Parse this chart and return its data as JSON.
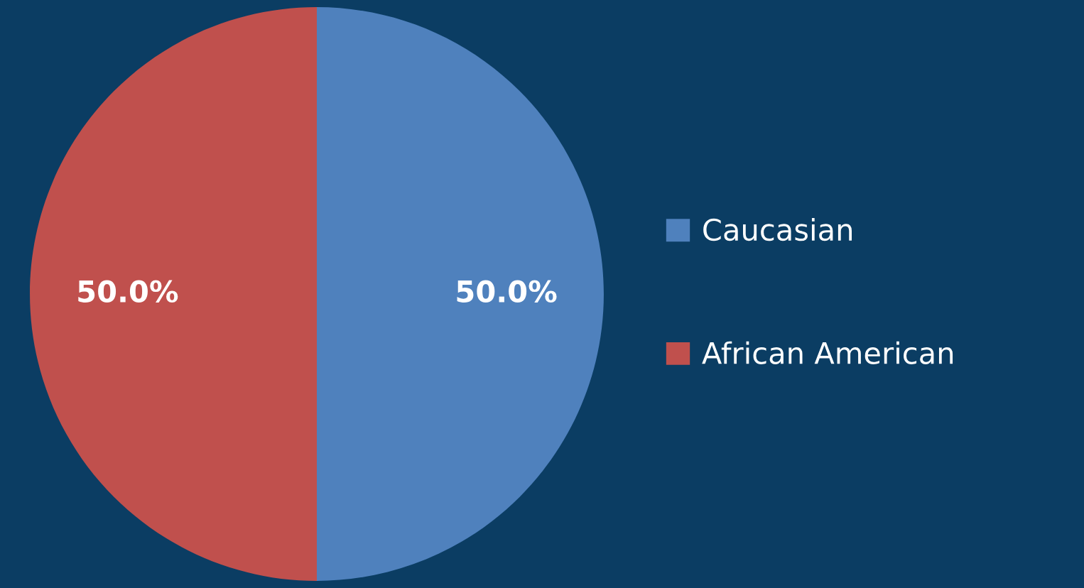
{
  "chart_data": {
    "type": "pie",
    "categories": [
      "Caucasian",
      "African American"
    ],
    "values": [
      50,
      50
    ],
    "colors": [
      "#4f81bd",
      "#c0504d"
    ],
    "value_labels": [
      "50.0%",
      "50.0%"
    ],
    "legend": "right"
  }
}
